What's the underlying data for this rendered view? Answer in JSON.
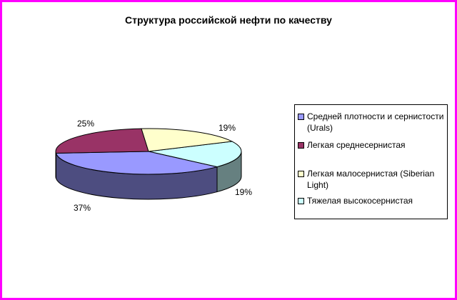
{
  "chart_data": {
    "type": "pie",
    "title": "Структура российской нефти по качеству",
    "series": [
      {
        "name": "Средней плотности и сернистости (Urals)",
        "value": 37,
        "label": "37%",
        "color": "#9999ff",
        "side_color": "#4d4d80"
      },
      {
        "name": "Легкая среднесернистая",
        "value": 25,
        "label": "25%",
        "color": "#993366",
        "side_color": "#4d1a33"
      },
      {
        "name": "Легкая малосернистая (Siberian Light)",
        "value": 19,
        "label": "19%",
        "color": "#ffffcc",
        "side_color": "#808066"
      },
      {
        "name": "Тяжелая высокосернистая",
        "value": 19,
        "label": "19%",
        "color": "#ccffff",
        "side_color": "#668080"
      }
    ],
    "legend_position": "right"
  },
  "frame_color": "#ff00ff"
}
